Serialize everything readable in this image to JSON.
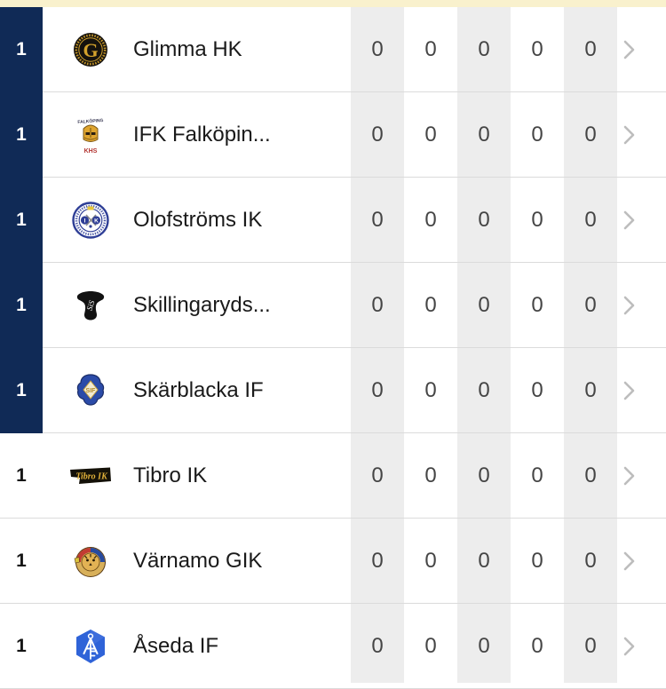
{
  "theme": {
    "accent_bar_color": "#F9F1CD",
    "highlight_color": "#102A56",
    "stripe_color": "#EDEDED",
    "divider_color": "#DBDBDB",
    "rank_text_color": "#141414",
    "team_text_color": "#1A1A1A",
    "stat_text_color": "#454545",
    "chevron_color": "#BDBDBD"
  },
  "standings": {
    "rows": [
      {
        "rank": "1",
        "team": "Glimma HK",
        "logo": "glimma-hk",
        "highlighted": true,
        "stats": [
          "0",
          "0",
          "0",
          "0",
          "0"
        ]
      },
      {
        "rank": "1",
        "team": "IFK Falköpin...",
        "logo": "ifk-falkoping",
        "highlighted": true,
        "stats": [
          "0",
          "0",
          "0",
          "0",
          "0"
        ]
      },
      {
        "rank": "1",
        "team": "Olofströms IK",
        "logo": "olofstroms-ik",
        "highlighted": true,
        "stats": [
          "0",
          "0",
          "0",
          "0",
          "0"
        ]
      },
      {
        "rank": "1",
        "team": "Skillingaryds...",
        "logo": "skillingaryds",
        "highlighted": true,
        "stats": [
          "0",
          "0",
          "0",
          "0",
          "0"
        ]
      },
      {
        "rank": "1",
        "team": "Skärblacka IF",
        "logo": "skarblacka-if",
        "highlighted": true,
        "stats": [
          "0",
          "0",
          "0",
          "0",
          "0"
        ]
      },
      {
        "rank": "1",
        "team": "Tibro IK",
        "logo": "tibro-ik",
        "highlighted": false,
        "stats": [
          "0",
          "0",
          "0",
          "0",
          "0"
        ]
      },
      {
        "rank": "1",
        "team": "Värnamo GIK",
        "logo": "varnamo-gik",
        "highlighted": false,
        "stats": [
          "0",
          "0",
          "0",
          "0",
          "0"
        ]
      },
      {
        "rank": "1",
        "team": "Åseda IF",
        "logo": "aseda-if",
        "highlighted": false,
        "stats": [
          "0",
          "0",
          "0",
          "0",
          "0"
        ]
      }
    ]
  }
}
